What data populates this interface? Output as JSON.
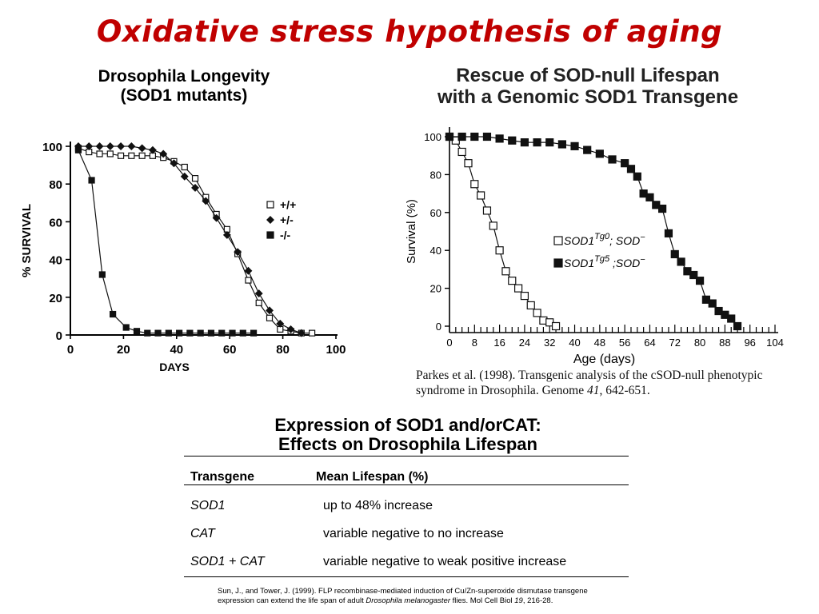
{
  "title": "Oxidative stress hypothesis of aging",
  "left_chart": {
    "title_line1": "Drosophila Longevity",
    "title_line2": "(SOD1 mutants)"
  },
  "right_chart": {
    "title_line1": "Rescue of SOD-null Lifespan",
    "title_line2": "with a Genomic SOD1 Transgene"
  },
  "chart_data": [
    {
      "type": "line",
      "title": "Drosophila Longevity (SOD1 mutants)",
      "xlabel": "DAYS",
      "ylabel": "% SURVIVAL",
      "xlim": [
        0,
        100
      ],
      "ylim": [
        0,
        100
      ],
      "xticks": [
        0,
        20,
        40,
        60,
        80,
        100
      ],
      "yticks": [
        0,
        20,
        40,
        60,
        80,
        100
      ],
      "legend_position": "right",
      "series": [
        {
          "name": "+/+",
          "marker": "open-square",
          "x": [
            3,
            7,
            11,
            15,
            19,
            23,
            27,
            31,
            35,
            39,
            43,
            47,
            51,
            55,
            59,
            63,
            67,
            71,
            75,
            79,
            83,
            87,
            91
          ],
          "y": [
            99,
            97,
            96,
            96,
            95,
            95,
            95,
            95,
            94,
            92,
            89,
            83,
            73,
            64,
            56,
            43,
            29,
            17,
            9,
            3,
            2,
            1,
            1
          ]
        },
        {
          "name": "+/-",
          "marker": "diamond",
          "x": [
            3,
            7,
            11,
            15,
            19,
            23,
            27,
            31,
            35,
            39,
            43,
            47,
            51,
            55,
            59,
            63,
            67,
            71,
            75,
            79,
            83,
            87
          ],
          "y": [
            100,
            100,
            100,
            100,
            100,
            100,
            99,
            98,
            96,
            91,
            84,
            78,
            71,
            62,
            53,
            44,
            34,
            22,
            13,
            6,
            3,
            1
          ]
        },
        {
          "name": "-/-",
          "marker": "filled-square",
          "x": [
            3,
            8,
            12,
            16,
            21,
            25,
            29,
            33,
            37,
            41,
            45,
            49,
            53,
            57,
            61,
            65,
            69
          ],
          "y": [
            98,
            82,
            32,
            11,
            4,
            2,
            1,
            1,
            1,
            1,
            1,
            1,
            1,
            1,
            1,
            1,
            1
          ]
        }
      ]
    },
    {
      "type": "line",
      "title": "Rescue of SOD-null Lifespan with a Genomic SOD1 Transgene",
      "xlabel": "Age (days)",
      "ylabel": "Survival (%)",
      "xlim": [
        0,
        104
      ],
      "ylim": [
        0,
        100
      ],
      "xticks": [
        0,
        8,
        16,
        24,
        32,
        40,
        48,
        56,
        64,
        72,
        80,
        88,
        96,
        104
      ],
      "yticks": [
        0,
        20,
        40,
        60,
        80,
        100
      ],
      "legend_position": "center-right",
      "series": [
        {
          "name": "SOD1Tg0; SOD−",
          "marker": "open-square",
          "x": [
            0,
            2,
            4,
            6,
            8,
            10,
            12,
            14,
            16,
            18,
            20,
            22,
            24,
            26,
            28,
            30,
            32,
            34
          ],
          "y": [
            100,
            98,
            92,
            86,
            75,
            69,
            61,
            53,
            40,
            29,
            24,
            20,
            16,
            11,
            7,
            3,
            2,
            0
          ]
        },
        {
          "name": "SOD1Tg5 ;SOD−",
          "marker": "filled-square",
          "x": [
            0,
            4,
            8,
            12,
            16,
            20,
            24,
            28,
            32,
            36,
            40,
            44,
            48,
            52,
            56,
            58,
            60,
            62,
            64,
            66,
            68,
            70,
            72,
            74,
            76,
            78,
            80,
            82,
            84,
            86,
            88,
            90,
            92
          ],
          "y": [
            100,
            100,
            100,
            100,
            99,
            98,
            97,
            97,
            97,
            96,
            95,
            93,
            91,
            88,
            86,
            83,
            79,
            70,
            68,
            64,
            62,
            49,
            38,
            34,
            29,
            27,
            24,
            14,
            12,
            8,
            6,
            4,
            0
          ]
        }
      ]
    }
  ],
  "left_legend": [
    {
      "label": "+/+",
      "marker": "open-square"
    },
    {
      "label": "+/-",
      "marker": "diamond"
    },
    {
      "label": "-/-",
      "marker": "filled-square"
    }
  ],
  "right_legend": [
    {
      "base": "SOD1",
      "sup": "Tg0",
      "suffix": "; SOD",
      "sup2": "−",
      "marker": "open-square"
    },
    {
      "base": "SOD1",
      "sup": "Tg5",
      "suffix": " ;SOD",
      "sup2": "−",
      "marker": "filled-square"
    }
  ],
  "citation_right": {
    "pre": "Parkes et al. (1998). Transgenic analysis of the cSOD-null phenotypic syndrome in Drosophila. Genome ",
    "vol": "41",
    "post": ", 642-651."
  },
  "table": {
    "heading_line1": "Expression of SOD1 and/orCAT:",
    "heading_line2": "Effects on Drosophila Lifespan",
    "col1_header": "Transgene",
    "col2_header": "Mean Lifespan (%)",
    "rows": [
      {
        "transgene": "SOD1",
        "effect": "up to 48% increase"
      },
      {
        "transgene": "CAT",
        "effect": "variable negative to no increase"
      },
      {
        "transgene": "SOD1 + CAT",
        "effect": "variable negative to weak positive increase"
      }
    ]
  },
  "citation_bottom": {
    "line1": "Sun, J., and Tower, J. (1999). FLP recombinase-mediated induction of Cu/Zn-superoxide dismutase transgene",
    "line2_pre": "expression can extend the life span of adult ",
    "line2_species": "Drosophila melanogaster",
    "line2_mid": " flies. Mol Cell Biol ",
    "line2_vol": "19",
    "line2_post": ", 216-28."
  }
}
